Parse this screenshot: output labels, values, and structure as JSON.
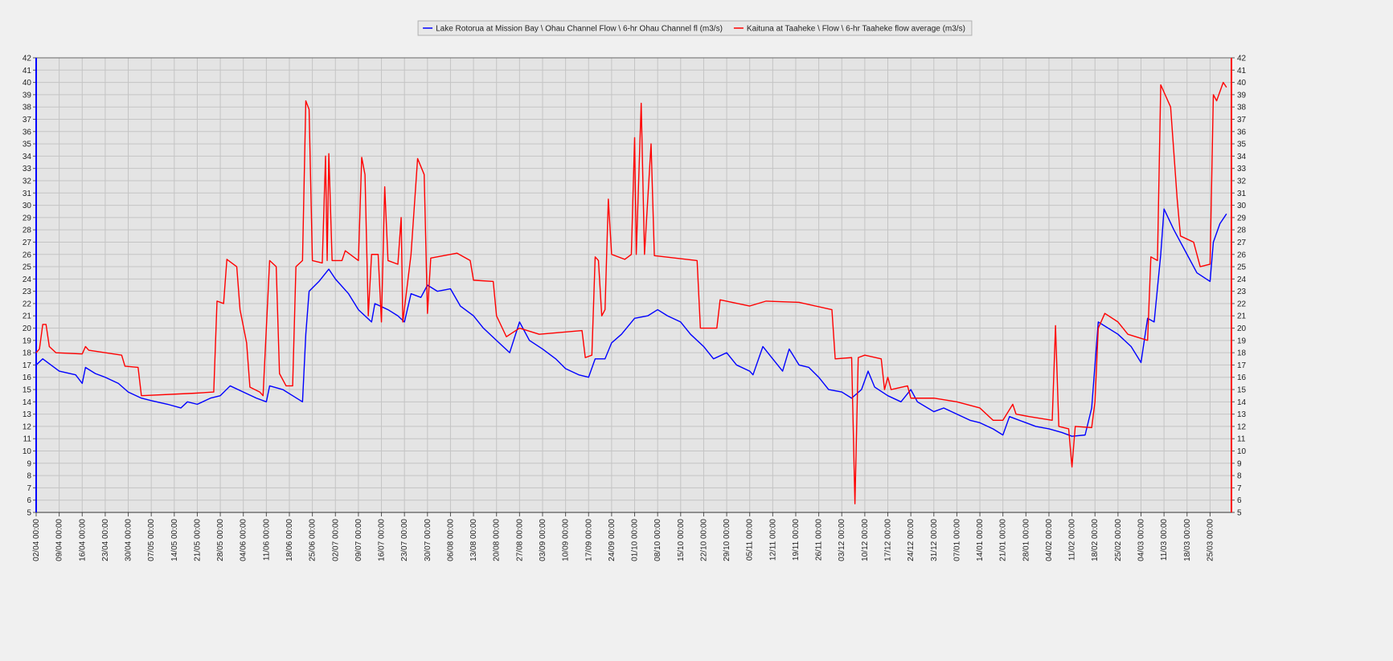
{
  "chart_data": {
    "type": "line",
    "legend": "top",
    "grid": true,
    "xlim": [
      "02/04 00:00",
      "31/03 12:00"
    ],
    "xticks": [
      "02/04 00:00",
      "09/04 00:00",
      "16/04 00:00",
      "23/04 00:00",
      "30/04 00:00",
      "07/05 00:00",
      "14/05 00:00",
      "21/05 00:00",
      "28/05 00:00",
      "04/06 00:00",
      "11/06 00:00",
      "18/06 00:00",
      "25/06 00:00",
      "02/07 00:00",
      "09/07 00:00",
      "16/07 00:00",
      "23/07 00:00",
      "30/07 00:00",
      "06/08 00:00",
      "13/08 00:00",
      "20/08 00:00",
      "27/08 00:00",
      "03/09 00:00",
      "10/09 00:00",
      "17/09 00:00",
      "24/09 00:00",
      "01/10 00:00",
      "08/10 00:00",
      "15/10 00:00",
      "22/10 00:00",
      "29/10 00:00",
      "05/11 00:00",
      "12/11 00:00",
      "19/11 00:00",
      "26/11 00:00",
      "03/12 00:00",
      "10/12 00:00",
      "17/12 00:00",
      "24/12 00:00",
      "31/12 00:00",
      "07/01 00:00",
      "14/01 00:00",
      "21/01 00:00",
      "28/01 00:00",
      "04/02 00:00",
      "11/02 00:00",
      "18/02 00:00",
      "25/02 00:00",
      "04/03 00:00",
      "11/03 00:00",
      "18/03 00:00",
      "25/03 00:00"
    ],
    "ylim": [
      5,
      42
    ],
    "yticks": [
      5,
      6,
      7,
      8,
      9,
      10,
      11,
      12,
      13,
      14,
      15,
      16,
      17,
      18,
      19,
      20,
      21,
      22,
      23,
      24,
      25,
      26,
      27,
      28,
      29,
      30,
      31,
      32,
      33,
      34,
      35,
      36,
      37,
      38,
      39,
      40,
      41,
      42
    ],
    "y2lim": [
      5,
      42
    ],
    "y2ticks": [
      5,
      6,
      7,
      8,
      9,
      10,
      11,
      12,
      13,
      14,
      15,
      16,
      17,
      18,
      19,
      20,
      21,
      22,
      23,
      24,
      25,
      26,
      27,
      28,
      29,
      30,
      31,
      32,
      33,
      34,
      35,
      36,
      37,
      38,
      39,
      40,
      41,
      42
    ],
    "series": [
      {
        "name": "Lake Rotorua at Mission Bay \\ Ohau Channel Flow \\ 6-hr Ohau Channel fl (m3/s)",
        "color": "#0000ff",
        "x": [
          "02/04 00:00",
          "04/04 00:00",
          "09/04 00:00",
          "14/04 00:00",
          "16/04 00:00",
          "17/04 00:00",
          "20/04 00:00",
          "23/04 00:00",
          "27/04 00:00",
          "30/04 00:00",
          "04/05 00:00",
          "07/05 00:00",
          "12/05 00:00",
          "16/05 00:00",
          "18/05 00:00",
          "21/05 00:00",
          "25/05 00:00",
          "28/05 00:00",
          "31/05 00:00",
          "04/06 00:00",
          "08/06 00:00",
          "11/06 00:00",
          "12/06 00:00",
          "16/06 00:00",
          "19/06 00:00",
          "22/06 00:00",
          "23/06 00:00",
          "24/06 00:00",
          "27/06 00:00",
          "30/06 00:00",
          "02/07 00:00",
          "06/07 00:00",
          "09/07 00:00",
          "13/07 00:00",
          "14/07 00:00",
          "18/07 00:00",
          "21/07 00:00",
          "23/07 00:00",
          "25/07 00:00",
          "28/07 00:00",
          "30/07 00:00",
          "02/08 00:00",
          "06/08 00:00",
          "09/08 00:00",
          "13/08 00:00",
          "16/08 00:00",
          "20/08 00:00",
          "24/08 00:00",
          "27/08 00:00",
          "30/08 00:00",
          "03/09 00:00",
          "07/09 00:00",
          "10/09 00:00",
          "14/09 00:00",
          "17/09 00:00",
          "19/09 00:00",
          "22/09 00:00",
          "24/09 00:00",
          "27/09 00:00",
          "01/10 00:00",
          "05/10 00:00",
          "08/10 00:00",
          "11/10 00:00",
          "15/10 00:00",
          "18/10 00:00",
          "22/10 00:00",
          "25/10 00:00",
          "29/10 00:00",
          "01/11 00:00",
          "05/11 00:00",
          "06/11 00:00",
          "09/11 00:00",
          "12/11 00:00",
          "15/11 00:00",
          "17/11 00:00",
          "20/11 00:00",
          "23/11 00:00",
          "26/11 00:00",
          "29/11 00:00",
          "03/12 00:00",
          "06/12 00:00",
          "09/12 00:00",
          "11/12 00:00",
          "13/12 00:00",
          "17/12 00:00",
          "21/12 00:00",
          "24/12 00:00",
          "26/12 00:00",
          "31/12 00:00",
          "03/01 00:00",
          "07/01 00:00",
          "11/01 00:00",
          "14/01 00:00",
          "18/01 00:00",
          "21/01 00:00",
          "23/01 00:00",
          "28/01 00:00",
          "31/01 00:00",
          "04/02 00:00",
          "08/02 00:00",
          "11/02 00:00",
          "15/02 00:00",
          "17/02 00:00",
          "18/02 00:00",
          "19/02 00:00",
          "25/02 00:00",
          "01/03 00:00",
          "04/03 00:00",
          "06/03 00:00",
          "08/03 00:00",
          "10/03 00:00",
          "11/03 00:00",
          "14/03 00:00",
          "18/03 00:00",
          "21/03 00:00",
          "25/03 00:00",
          "26/03 00:00",
          "28/03 00:00",
          "30/03 00:00"
        ],
        "values": [
          17.0,
          17.5,
          16.5,
          16.2,
          15.5,
          16.8,
          16.3,
          16.0,
          15.5,
          14.8,
          14.3,
          14.1,
          13.8,
          13.5,
          14.0,
          13.8,
          14.3,
          14.5,
          15.3,
          14.8,
          14.3,
          14.0,
          15.3,
          15.0,
          14.5,
          14.0,
          19.5,
          23.0,
          23.8,
          24.8,
          24.0,
          22.8,
          21.5,
          20.5,
          22.0,
          21.5,
          21.0,
          20.5,
          22.8,
          22.5,
          23.5,
          23.0,
          23.2,
          21.8,
          21.0,
          20.0,
          19.0,
          18.0,
          20.5,
          19.0,
          18.3,
          17.5,
          16.7,
          16.2,
          16.0,
          17.5,
          17.5,
          18.8,
          19.5,
          20.8,
          21.0,
          21.5,
          21.0,
          20.5,
          19.5,
          18.5,
          17.5,
          18.0,
          17.0,
          16.5,
          16.2,
          18.5,
          17.5,
          16.5,
          18.3,
          17.0,
          16.8,
          16.0,
          15.0,
          14.8,
          14.3,
          15.0,
          16.5,
          15.2,
          14.5,
          14.0,
          15.0,
          14.0,
          13.2,
          13.5,
          13.0,
          12.5,
          12.3,
          11.8,
          11.3,
          12.8,
          12.3,
          12.0,
          11.8,
          11.5,
          11.2,
          11.3,
          13.5,
          17.0,
          20.5,
          19.5,
          18.5,
          17.2,
          20.8,
          20.5,
          26.0,
          29.7,
          28.0,
          26.0,
          24.5,
          23.8,
          27.0,
          28.5,
          29.3
        ]
      },
      {
        "name": "Kaituna at Taaheke \\ Flow \\ 6-hr Taaheke flow average (m3/s)",
        "color": "#ff0000",
        "axis": "y2",
        "x": [
          "02/04 00:00",
          "03/04 00:00",
          "04/04 00:00",
          "05/04 00:00",
          "06/04 00:00",
          "08/04 00:00",
          "16/04 00:00",
          "17/04 00:00",
          "18/04 00:00",
          "28/04 00:00",
          "29/04 00:00",
          "03/05 00:00",
          "04/05 00:00",
          "20/05 00:00",
          "26/05 00:00",
          "27/05 00:00",
          "29/05 00:00",
          "30/05 00:00",
          "02/06 00:00",
          "03/06 00:00",
          "05/06 00:00",
          "06/06 00:00",
          "09/06 00:00",
          "10/06 00:00",
          "12/06 00:00",
          "14/06 00:00",
          "15/06 00:00",
          "17/06 00:00",
          "19/06 00:00",
          "20/06 00:00",
          "22/06 00:00",
          "23/06 00:00",
          "24/06 00:00",
          "25/06 00:00",
          "28/06 00:00",
          "29/06 00:00",
          "29/06 12:00",
          "30/06 00:00",
          "01/07 00:00",
          "04/07 00:00",
          "05/07 00:00",
          "09/07 00:00",
          "10/07 00:00",
          "11/07 00:00",
          "12/07 00:00",
          "13/07 00:00",
          "15/07 00:00",
          "16/07 00:00",
          "17/07 00:00",
          "18/07 00:00",
          "21/07 00:00",
          "22/07 00:00",
          "22/07 12:00",
          "25/07 00:00",
          "27/07 00:00",
          "29/07 00:00",
          "30/07 00:00",
          "31/07 00:00",
          "08/08 00:00",
          "12/08 00:00",
          "13/08 00:00",
          "19/08 00:00",
          "20/08 00:00",
          "23/08 00:00",
          "27/08 00:00",
          "02/09 00:00",
          "15/09 00:00",
          "16/09 00:00",
          "18/09 00:00",
          "19/09 00:00",
          "20/09 00:00",
          "21/09 00:00",
          "22/09 00:00",
          "23/09 00:00",
          "24/09 00:00",
          "28/09 00:00",
          "30/09 00:00",
          "01/10 00:00",
          "01/10 12:00",
          "03/10 00:00",
          "04/10 00:00",
          "06/10 00:00",
          "07/10 00:00",
          "20/10 00:00",
          "21/10 00:00",
          "26/10 00:00",
          "27/10 00:00",
          "05/11 00:00",
          "10/11 00:00",
          "20/11 00:00",
          "30/11 00:00",
          "01/12 00:00",
          "06/12 00:00",
          "07/12 00:00",
          "08/12 00:00",
          "10/12 00:00",
          "15/12 00:00",
          "16/12 00:00",
          "17/12 00:00",
          "18/12 00:00",
          "23/12 00:00",
          "24/12 00:00",
          "31/12 00:00",
          "07/01 00:00",
          "14/01 00:00",
          "18/01 00:00",
          "21/01 00:00",
          "24/01 00:00",
          "25/01 00:00",
          "29/01 00:00",
          "05/02 00:00",
          "06/02 00:00",
          "07/02 00:00",
          "10/02 00:00",
          "11/02 00:00",
          "12/02 00:00",
          "17/02 00:00",
          "18/02 00:00",
          "19/02 00:00",
          "21/02 00:00",
          "25/02 00:00",
          "28/02 00:00",
          "06/03 00:00",
          "07/03 00:00",
          "09/03 00:00",
          "10/03 00:00",
          "13/03 00:00",
          "15/03 00:00",
          "16/03 00:00",
          "20/03 00:00",
          "22/03 00:00",
          "25/03 00:00",
          "26/03 00:00",
          "27/03 00:00",
          "29/03 00:00",
          "30/03 00:00"
        ],
        "values": [
          18.0,
          18.3,
          20.3,
          20.3,
          18.5,
          18.0,
          17.9,
          18.5,
          18.2,
          17.8,
          16.9,
          16.8,
          14.5,
          14.7,
          14.8,
          22.2,
          22.0,
          25.6,
          25.0,
          21.5,
          18.8,
          15.2,
          14.8,
          14.5,
          25.5,
          25.0,
          16.3,
          15.3,
          15.3,
          25.0,
          25.5,
          38.5,
          37.8,
          25.5,
          25.3,
          34.0,
          25.5,
          34.2,
          25.5,
          25.5,
          26.3,
          25.5,
          33.9,
          32.5,
          21.0,
          26.0,
          26.0,
          20.5,
          31.5,
          25.5,
          25.2,
          29.0,
          20.5,
          26.0,
          33.8,
          32.5,
          21.2,
          25.7,
          26.1,
          25.5,
          23.9,
          23.8,
          21.0,
          19.3,
          20.0,
          19.5,
          19.8,
          17.6,
          17.8,
          25.8,
          25.5,
          21.0,
          21.5,
          30.5,
          26.0,
          25.6,
          26.0,
          35.5,
          26.0,
          38.3,
          26.0,
          35.0,
          25.9,
          25.5,
          20.0,
          20.0,
          22.3,
          21.8,
          22.2,
          22.1,
          21.5,
          17.5,
          17.6,
          5.7,
          17.6,
          17.8,
          17.5,
          15.0,
          16.0,
          15.0,
          15.3,
          14.3,
          14.3,
          14.0,
          13.5,
          12.5,
          12.5,
          13.8,
          13.0,
          12.8,
          12.5,
          20.2,
          12.0,
          11.8,
          8.7,
          12.0,
          11.9,
          14.0,
          20.0,
          21.2,
          20.5,
          19.5,
          19.0,
          25.8,
          25.5,
          39.8,
          38.0,
          30.5,
          27.5,
          27.0,
          25.0,
          25.2,
          39.0,
          38.5,
          40.0,
          39.6
        ]
      }
    ]
  }
}
